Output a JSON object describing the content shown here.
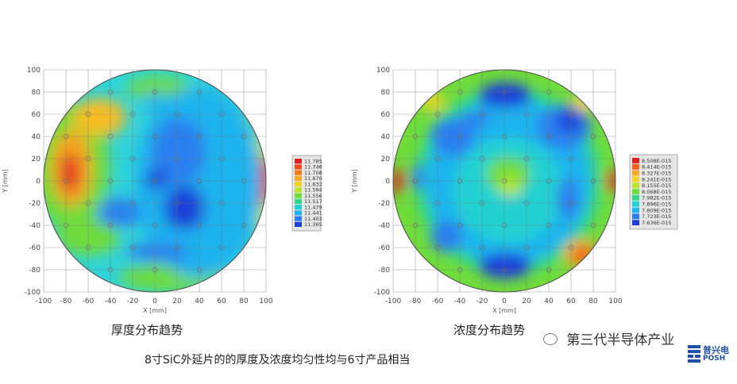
{
  "chart_data": [
    {
      "type": "heatmap",
      "title": "厚度分布趋势",
      "xlabel": "X [mm]",
      "ylabel": "Y [mm]",
      "xlim": [
        -100,
        100
      ],
      "ylim": [
        -100,
        100
      ],
      "x_ticks": [
        "-100",
        "-80",
        "-60",
        "-40",
        "-20",
        "0",
        "20",
        "40",
        "60",
        "80",
        "100"
      ],
      "y_ticks": [
        "100",
        "80",
        "60",
        "40",
        "20",
        "0",
        "-20",
        "-40",
        "-60",
        "-80",
        "-100"
      ],
      "grid": true,
      "legend_placement": "right",
      "legend_values": [
        "11.785",
        "11.746",
        "11.708",
        "11.670",
        "11.632",
        "11.594",
        "11.556",
        "11.517",
        "11.479",
        "11.441",
        "11.403",
        "11.365"
      ],
      "legend_colors": [
        "#e02020",
        "#ef4a1a",
        "#f77b1c",
        "#f9a91f",
        "#f2d323",
        "#b9e52a",
        "#6fdc3a",
        "#2fd88a",
        "#21d2d2",
        "#1fb4ef",
        "#2a7ff0",
        "#1b3fd8"
      ],
      "features": [
        {
          "level": 11.785,
          "x": -75,
          "y": 5
        },
        {
          "level": 11.785,
          "x": 97,
          "y": 0
        },
        {
          "level": 11.708,
          "x": -55,
          "y": 55
        },
        {
          "level": 11.594,
          "x": -25,
          "y": -65
        },
        {
          "level": 11.556,
          "x": 65,
          "y": 45
        },
        {
          "level": 11.441,
          "x": 30,
          "y": 20
        },
        {
          "level": 11.403,
          "x": 20,
          "y": 35
        },
        {
          "level": 11.403,
          "x": 28,
          "y": -25
        },
        {
          "level": 11.365,
          "x": 0,
          "y": -2
        },
        {
          "level": 11.441,
          "x": -35,
          "y": -30
        },
        {
          "level": 11.441,
          "x": 5,
          "y": -65
        },
        {
          "level": 11.479,
          "x": 5,
          "y": 80
        },
        {
          "level": 11.632,
          "x": -45,
          "y": -80
        }
      ]
    },
    {
      "type": "heatmap",
      "title": "浓度分布趋势",
      "xlabel": "X [mm]",
      "ylabel": "Y [mm]",
      "xlim": [
        -100,
        100
      ],
      "ylim": [
        -100,
        100
      ],
      "x_ticks": [
        "-100",
        "-80",
        "-60",
        "-40",
        "-20",
        "0",
        "20",
        "40",
        "60",
        "80",
        "100"
      ],
      "y_ticks": [
        "100",
        "80",
        "60",
        "40",
        "20",
        "0",
        "-20",
        "-40",
        "-60",
        "-80",
        "-100"
      ],
      "grid": true,
      "legend_placement": "right",
      "legend_values": [
        "8.508E-015",
        "8.414E-015",
        "8.327E-015",
        "8.241E-015",
        "8.155E-015",
        "8.068E-015",
        "7.982E-015",
        "7.896E-015",
        "7.809E-015",
        "7.723E-015",
        "7.636E-015"
      ],
      "legend_colors": [
        "#e02020",
        "#f4601b",
        "#f9a91f",
        "#f2d323",
        "#b9e52a",
        "#6fdc3a",
        "#2fd88a",
        "#21d2d2",
        "#1fb4ef",
        "#2a7ff0",
        "#1b3fd8"
      ],
      "features": [
        {
          "level": "8.508E-015",
          "x": -96,
          "y": 0
        },
        {
          "level": "8.508E-015",
          "x": 97,
          "y": 0
        },
        {
          "level": "8.414E-015",
          "x": 70,
          "y": -65
        },
        {
          "level": "7.636E-015",
          "x": 0,
          "y": 78
        },
        {
          "level": "7.636E-015",
          "x": 0,
          "y": -75
        },
        {
          "level": "7.636E-015",
          "x": 55,
          "y": 40
        },
        {
          "level": "7.723E-015",
          "x": -45,
          "y": 40
        },
        {
          "level": "7.723E-015",
          "x": -55,
          "y": -45
        },
        {
          "level": "7.723E-015",
          "x": 55,
          "y": -15
        },
        {
          "level": "8.155E-015",
          "x": 10,
          "y": 0
        },
        {
          "level": "7.982E-015",
          "x": 0,
          "y": 10
        }
      ]
    }
  ],
  "captions": {
    "thickness": "厚度分布趋势",
    "concentration": "浓度分布趋势",
    "summary": "8寸SiC外延片的的厚度及浓度均匀性均与6寸产品相当"
  },
  "watermark": {
    "text": "第三代半导体产业"
  },
  "logo": {
    "cn": "普兴电",
    "en": "POSH"
  }
}
